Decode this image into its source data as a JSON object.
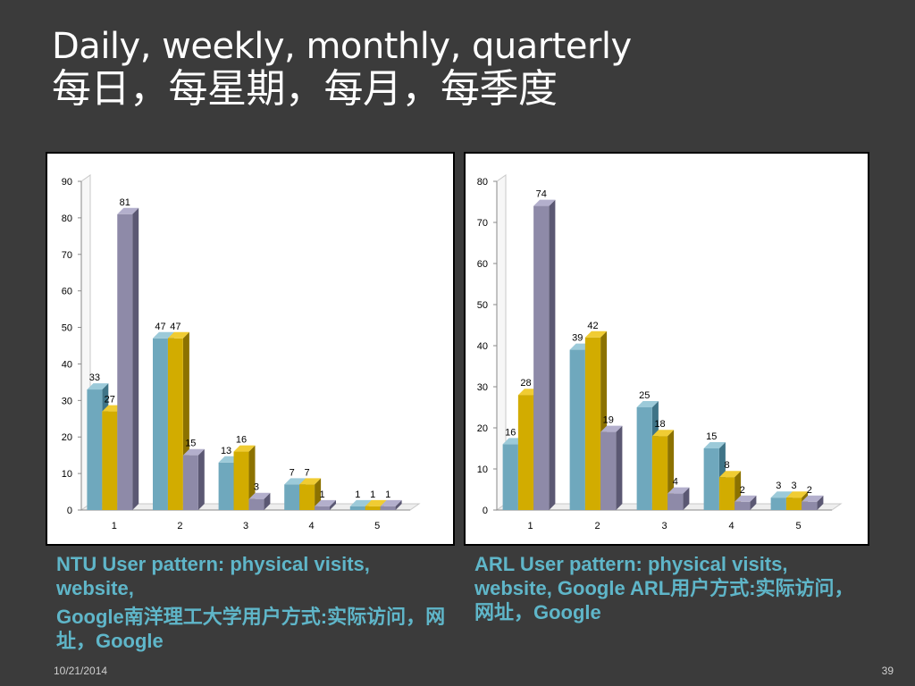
{
  "slide": {
    "title_line1": "Daily, weekly, monthly, quarterly",
    "title_line2": "每日，每星期，每月，每季度",
    "date": "10/21/2014",
    "page": "39",
    "caption_left_1": "NTU User pattern: physical visits, website,",
    "caption_left_2": "Google南洋理工大学用户方式:实际访问，网址，Google",
    "caption_right": "ARL User pattern: physical visits, website, Google ARL用户方式:实际访问，网址，Google"
  },
  "colors": {
    "series": [
      "#6fa8bd",
      "#d2ac00",
      "#8e8aa8"
    ],
    "series_side": [
      "#3f7487",
      "#8c7200",
      "#5b5873"
    ],
    "series_top": [
      "#9ccad9",
      "#f0cc33",
      "#b3afcc"
    ],
    "background": "#3b3b3b",
    "caption": "#5fb6c9"
  },
  "chart_data": [
    {
      "type": "bar",
      "categories": [
        "1",
        "2",
        "3",
        "4",
        "5"
      ],
      "series": [
        {
          "values": [
            33,
            47,
            13,
            7,
            1
          ]
        },
        {
          "values": [
            27,
            47,
            16,
            7,
            1
          ]
        },
        {
          "values": [
            81,
            15,
            3,
            1,
            1
          ]
        }
      ],
      "ylim": [
        0,
        90
      ],
      "yticks": [
        "0",
        "10",
        "20",
        "30",
        "40",
        "50",
        "60",
        "70",
        "80",
        "90"
      ],
      "grid": false,
      "legend": "none",
      "style": "3d-clustered-column"
    },
    {
      "type": "bar",
      "categories": [
        "1",
        "2",
        "3",
        "4",
        "5"
      ],
      "series": [
        {
          "values": [
            16,
            39,
            25,
            15,
            3
          ]
        },
        {
          "values": [
            28,
            42,
            18,
            8,
            3
          ]
        },
        {
          "values": [
            74,
            19,
            4,
            2,
            2
          ]
        }
      ],
      "ylim": [
        0,
        80
      ],
      "yticks": [
        "0",
        "10",
        "20",
        "30",
        "40",
        "50",
        "60",
        "70",
        "80"
      ],
      "grid": false,
      "legend": "none",
      "style": "3d-clustered-column"
    }
  ]
}
